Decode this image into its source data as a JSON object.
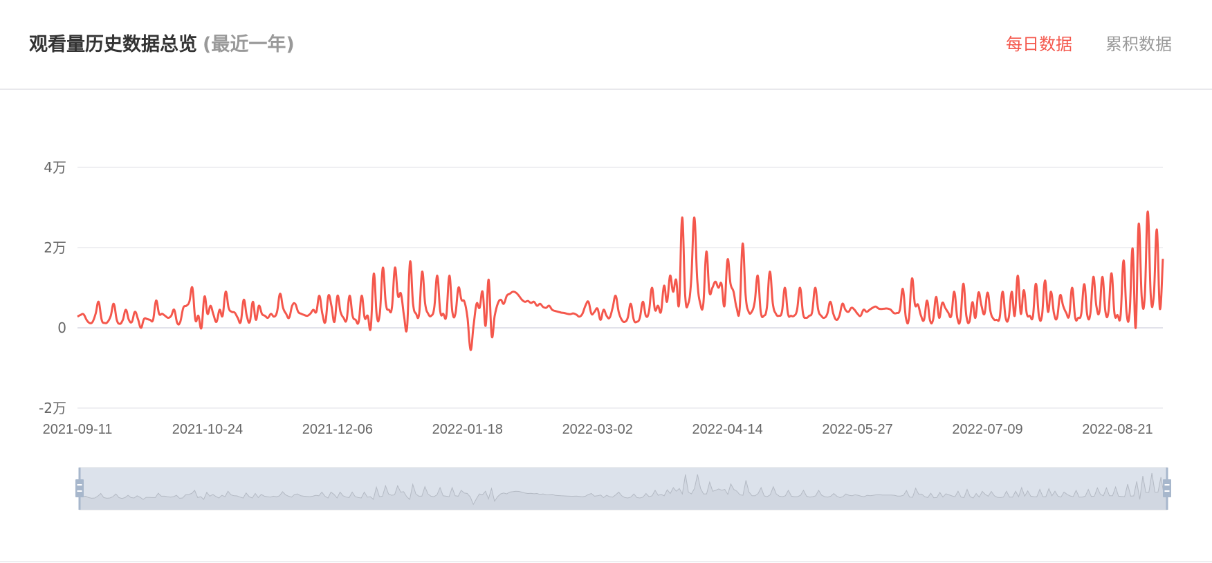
{
  "header": {
    "title": "观看量历史数据总览",
    "subtitle": "(最近一年)",
    "tabs": [
      {
        "label": "每日数据",
        "active": true
      },
      {
        "label": "累积数据",
        "active": false
      }
    ]
  },
  "colors": {
    "accent": "#f4574c",
    "inactive_tab": "#999999",
    "datazoom_fill": "#dce2eb",
    "datazoom_handle": "#a7b7cc"
  },
  "chart_data": {
    "type": "line",
    "smooth": true,
    "title": "",
    "xlabel": "",
    "ylabel": "",
    "x_start_date": "2021-09-11",
    "x_step": "1 day",
    "ylim": [
      -20000,
      40000
    ],
    "yticks": [
      {
        "value": -20000,
        "label": "-2万"
      },
      {
        "value": 0,
        "label": "0"
      },
      {
        "value": 20000,
        "label": "2万"
      },
      {
        "value": 40000,
        "label": "4万"
      }
    ],
    "xticks": [
      "2021-09-11",
      "2021-10-24",
      "2021-12-06",
      "2022-01-18",
      "2022-03-02",
      "2022-04-14",
      "2022-05-27",
      "2022-07-09",
      "2022-08-21"
    ],
    "grid": true,
    "datazoom": {
      "start_percent": 0,
      "end_percent": 100
    },
    "values": [
      2800,
      3200,
      3400,
      2000,
      1200,
      1500,
      3500,
      6500,
      2000,
      1200,
      1500,
      3000,
      6000,
      2000,
      1000,
      2000,
      4500,
      2000,
      1500,
      4000,
      2200,
      0,
      2200,
      2200,
      2000,
      2000,
      6800,
      3500,
      3500,
      3000,
      2500,
      3000,
      4500,
      1200,
      1500,
      5000,
      5500,
      6500,
      10000,
      2000,
      3000,
      0,
      7800,
      3500,
      5500,
      3200,
      1500,
      4500,
      3000,
      9000,
      5000,
      4000,
      3800,
      2500,
      1500,
      7000,
      3000,
      1500,
      6500,
      2000,
      5500,
      3500,
      3000,
      2500,
      3500,
      2800,
      4000,
      8500,
      5000,
      3500,
      2500,
      5500,
      6000,
      4000,
      3500,
      3200,
      3000,
      3500,
      4500,
      4000,
      8000,
      3500,
      1500,
      8000,
      5500,
      1500,
      8000,
      4000,
      2500,
      2000,
      8000,
      3000,
      2000,
      1500,
      8000,
      2500,
      3000,
      0,
      13500,
      3000,
      3500,
      15000,
      6000,
      4500,
      5000,
      15000,
      8000,
      8500,
      3000,
      0,
      16500,
      6000,
      3500,
      3500,
      14000,
      6000,
      3500,
      3000,
      5000,
      13000,
      4000,
      3500,
      3000,
      13000,
      4000,
      3500,
      10000,
      7000,
      6500,
      2500,
      -5500,
      500,
      6000,
      5000,
      9000,
      500,
      12000,
      -2000,
      3000,
      6000,
      7000,
      6000,
      8000,
      8500,
      9000,
      8800,
      8000,
      7000,
      6500,
      6700,
      6200,
      6500,
      5500,
      6000,
      5200,
      5000,
      5500,
      4500,
      4200,
      4000,
      3800,
      3700,
      3500,
      3400,
      3600,
      3300,
      2800,
      3500,
      5500,
      6500,
      3500,
      4000,
      4800,
      2000,
      4500,
      3000,
      2500,
      5000,
      8000,
      4000,
      2000,
      1500,
      2500,
      6000,
      2000,
      1500,
      2500,
      6500,
      3000,
      4000,
      10000,
      4500,
      5500,
      4000,
      10500,
      6500,
      13000,
      9000,
      12000,
      6000,
      27500,
      8000,
      6000,
      12000,
      27500,
      12000,
      6000,
      6000,
      19000,
      9000,
      10000,
      11500,
      10000,
      11000,
      5500,
      17000,
      11000,
      9000,
      5000,
      4500,
      21000,
      8000,
      4000,
      4000,
      6500,
      13000,
      4000,
      3000,
      5000,
      14000,
      6000,
      3500,
      3000,
      4000,
      10000,
      3500,
      3000,
      3000,
      4500,
      10000,
      3500,
      2500,
      3000,
      4000,
      10000,
      4500,
      3000,
      2500,
      3500,
      6500,
      3500,
      2000,
      3000,
      6000,
      4500,
      4000,
      5000,
      4500,
      3500,
      3000,
      4500,
      4000,
      4500,
      5000,
      5300,
      4800,
      4700,
      4800,
      4800,
      4500,
      3700,
      3700,
      4500,
      9700,
      2500,
      2300,
      12300,
      5800,
      5800,
      3000,
      2000,
      6800,
      1800,
      2000,
      7700,
      2500,
      6200,
      5000,
      3800,
      3000,
      9000,
      2500,
      2000,
      11000,
      3000,
      1500,
      6400,
      2500,
      8800,
      5500,
      3500,
      8800,
      4000,
      2200,
      2000,
      2500,
      9000,
      2500,
      2500,
      9000,
      3000,
      13000,
      3500,
      9400,
      3500,
      3000,
      2800,
      11000,
      3000,
      3000,
      11800,
      4000,
      9000,
      3500,
      2500,
      8100,
      5500,
      3800,
      3000,
      10000,
      2500,
      2500,
      3500,
      10900,
      3200,
      3500,
      12700,
      5500,
      4000,
      12700,
      4000,
      4000,
      13600,
      3500,
      3200,
      3000,
      16800,
      3600,
      3800,
      19800,
      0,
      25900,
      7700,
      7700,
      29000,
      8000,
      8000,
      24500,
      4800,
      17200
    ]
  }
}
